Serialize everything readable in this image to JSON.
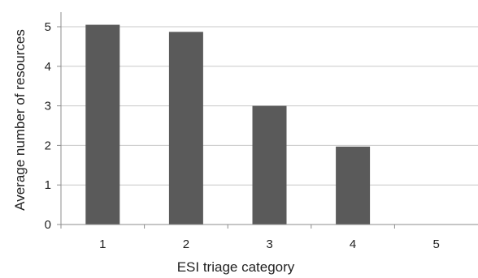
{
  "chart_data": {
    "type": "bar",
    "categories": [
      "1",
      "2",
      "3",
      "4",
      "5"
    ],
    "values": [
      5.05,
      4.87,
      3.0,
      1.97,
      0
    ],
    "xlabel": "ESI triage category",
    "ylabel": "Average number of resources",
    "ylim": [
      0,
      5
    ],
    "yticks": [
      "0",
      "1",
      "2",
      "3",
      "4",
      "5"
    ],
    "grid": "horizontal",
    "legend": "none",
    "colors": {
      "bar": "#5a5a5a",
      "grid": "#c8c8c8",
      "axis": "#8c8c8c",
      "text": "#222222"
    }
  }
}
